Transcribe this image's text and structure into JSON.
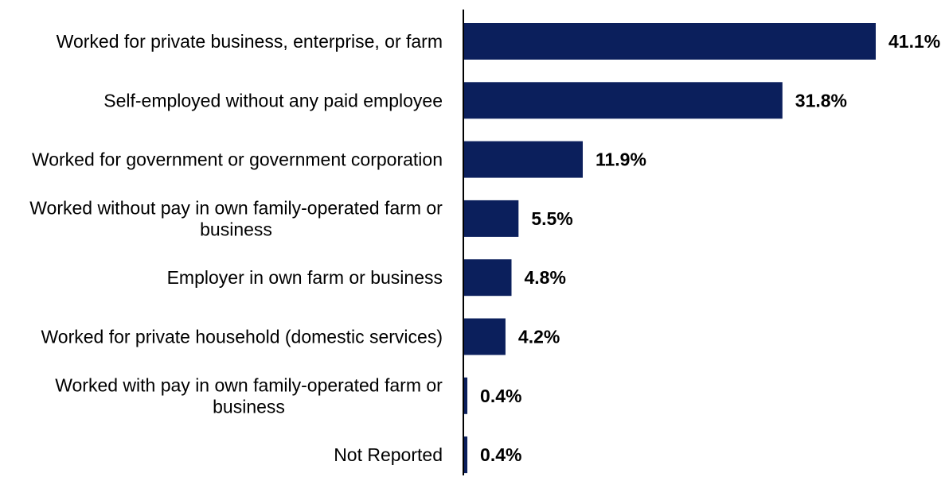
{
  "chart_data": {
    "type": "bar",
    "orientation": "horizontal",
    "title": "",
    "xlabel": "",
    "ylabel": "",
    "categories": [
      "Worked for private business, enterprise, or farm",
      "Self-employed without any paid employee",
      "Worked for government or government corporation",
      "Worked without pay in own family-operated farm or business",
      "Employer in own farm or business",
      "Worked for private household (domestic services)",
      "Worked with pay in own family-operated farm or business",
      "Not Reported"
    ],
    "category_lines": [
      [
        "Worked for private business, enterprise, or farm"
      ],
      [
        "Self-employed without any paid employee"
      ],
      [
        "Worked for government or government corporation"
      ],
      [
        "Worked without pay in own family-operated farm or",
        "business"
      ],
      [
        "Employer in own farm or business"
      ],
      [
        "Worked for private household (domestic services)"
      ],
      [
        "Worked with pay in own family-operated farm or",
        "business"
      ],
      [
        "Not Reported"
      ]
    ],
    "values": [
      41.1,
      31.8,
      11.9,
      5.5,
      4.8,
      4.2,
      0.4,
      0.4
    ],
    "value_labels": [
      "41.1%",
      "31.8%",
      "11.9%",
      "5.5%",
      "4.8%",
      "4.2%",
      "0.4%",
      "0.4%"
    ],
    "xlim": [
      0,
      41.1
    ],
    "grid": false,
    "legend": "none",
    "colors": {
      "bar": "#0b1f5c",
      "axis": "#000000",
      "text": "#000000"
    }
  }
}
